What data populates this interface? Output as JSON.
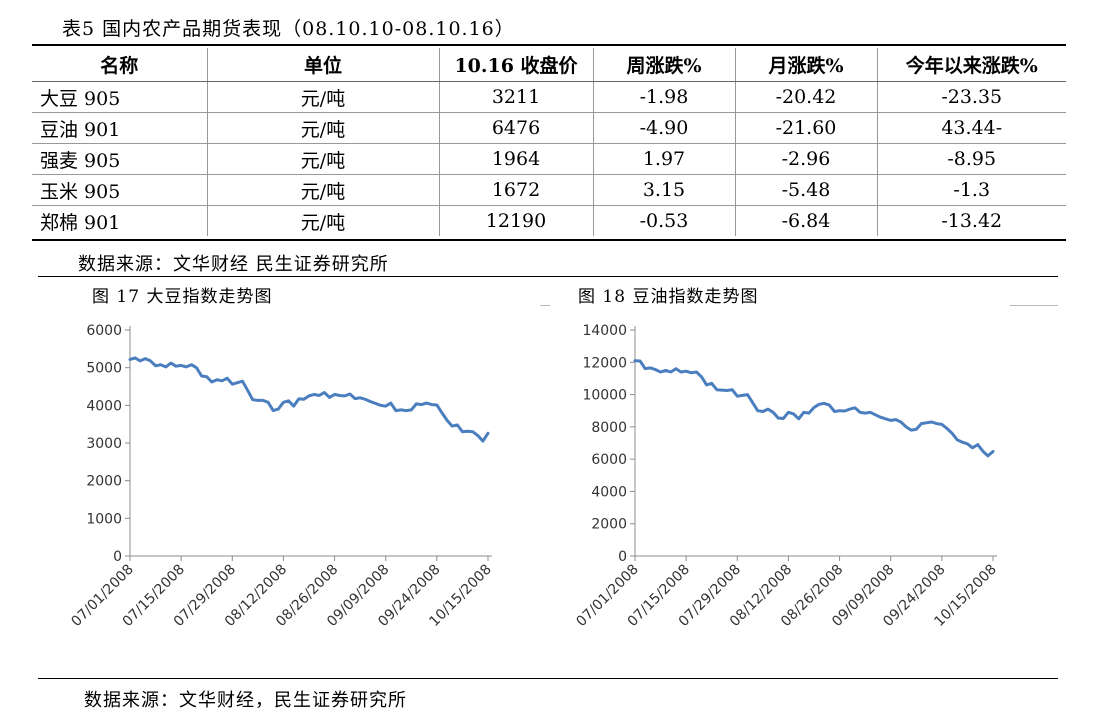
{
  "table": {
    "title": "表5  国内农产品期货表现（08.10.10-08.10.16）",
    "headers": [
      "名称",
      "单位",
      "10.16 收盘价",
      "周涨跌%",
      "月涨跌%",
      "今年以来涨跌%"
    ],
    "rows": [
      [
        "大豆 905",
        "元/吨",
        "3211",
        "-1.98",
        "-20.42",
        "-23.35"
      ],
      [
        "豆油 901",
        "元/吨",
        "6476",
        "-4.90",
        "-21.60",
        "43.44-"
      ],
      [
        "强麦 905",
        "元/吨",
        "1964",
        "1.97",
        "-2.96",
        "-8.95"
      ],
      [
        "玉米 905",
        "元/吨",
        "1672",
        "3.15",
        "-5.48",
        "-1.3"
      ],
      [
        "郑棉 901",
        "元/吨",
        "12190",
        "-0.53",
        "-6.84",
        "-13.42"
      ]
    ]
  },
  "source_1": "数据来源：文华财经 民生证券研究所",
  "figures": {
    "fig17_title": "图 17  大豆指数走势图",
    "fig18_title": "图 18  豆油指数走势图"
  },
  "source_2": "数据来源：文华财经，民生证券研究所",
  "chart_data": [
    {
      "type": "line",
      "series_color": "#4a7ebf",
      "ylim": [
        0,
        6000
      ],
      "yticks": [
        0,
        1000,
        2000,
        3000,
        4000,
        5000,
        6000
      ],
      "xticks": [
        "07/01/2008",
        "07/15/2008",
        "07/29/2008",
        "08/12/2008",
        "08/26/2008",
        "09/09/2008",
        "09/24/2008",
        "10/15/2008"
      ],
      "xtick_index": [
        0,
        10,
        20,
        30,
        40,
        50,
        60,
        70
      ],
      "values": [
        5220,
        5260,
        5180,
        5240,
        5180,
        5050,
        5080,
        5020,
        5120,
        5040,
        5060,
        5020,
        5080,
        5000,
        4780,
        4760,
        4620,
        4680,
        4650,
        4720,
        4560,
        4600,
        4640,
        4400,
        4150,
        4130,
        4130,
        4080,
        3860,
        3900,
        4080,
        4120,
        3980,
        4170,
        4160,
        4250,
        4290,
        4260,
        4340,
        4210,
        4290,
        4260,
        4250,
        4300,
        4180,
        4200,
        4160,
        4100,
        4050,
        4000,
        3980,
        4060,
        3860,
        3880,
        3860,
        3880,
        4040,
        4020,
        4060,
        4020,
        4010,
        3800,
        3600,
        3450,
        3480,
        3300,
        3310,
        3300,
        3200,
        3050,
        3260
      ]
    },
    {
      "type": "line",
      "series_color": "#4a7ebf",
      "ylim": [
        0,
        14000
      ],
      "yticks": [
        0,
        2000,
        4000,
        6000,
        8000,
        10000,
        12000,
        14000
      ],
      "xticks": [
        "07/01/2008",
        "07/15/2008",
        "07/29/2008",
        "08/12/2008",
        "08/26/2008",
        "09/09/2008",
        "09/24/2008",
        "10/15/2008"
      ],
      "xtick_index": [
        0,
        10,
        20,
        30,
        40,
        50,
        60,
        70
      ],
      "values": [
        12100,
        12080,
        11600,
        11650,
        11550,
        11400,
        11500,
        11400,
        11600,
        11400,
        11450,
        11350,
        11400,
        11100,
        10600,
        10700,
        10300,
        10280,
        10250,
        10300,
        9900,
        9950,
        10000,
        9500,
        9000,
        8950,
        9100,
        8900,
        8550,
        8520,
        8900,
        8800,
        8500,
        8900,
        8850,
        9200,
        9400,
        9450,
        9350,
        8950,
        9000,
        8980,
        9100,
        9180,
        8900,
        8850,
        8900,
        8750,
        8600,
        8500,
        8400,
        8450,
        8300,
        8000,
        7800,
        7850,
        8200,
        8250,
        8300,
        8200,
        8150,
        7900,
        7600,
        7200,
        7050,
        6950,
        6700,
        6900,
        6500,
        6200,
        6476
      ]
    }
  ]
}
